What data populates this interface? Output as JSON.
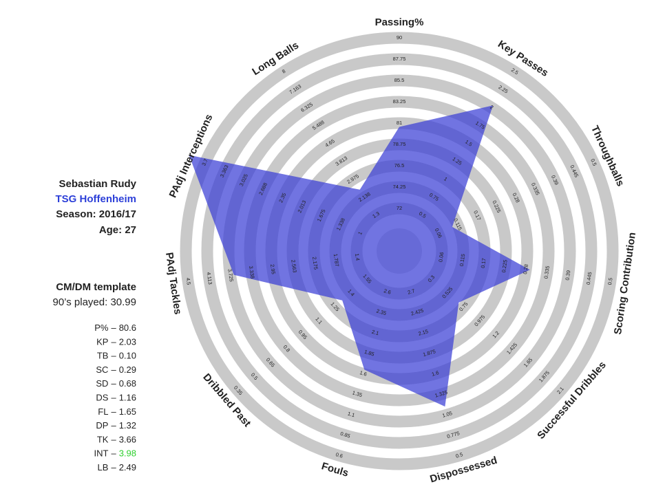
{
  "chart_data": {
    "type": "radar",
    "axes": [
      {
        "name": "Passing%",
        "lim": [
          67.5,
          90
        ],
        "ticks": [
          72,
          74.25,
          76.5,
          78.75,
          81,
          83.25,
          85.5,
          87.75,
          90
        ]
      },
      {
        "name": "Key Passes",
        "lim": [
          0,
          2.5
        ],
        "ticks": [
          0.5,
          0.75,
          1,
          1.25,
          1.5,
          1.75,
          2,
          2.25,
          2.5
        ]
      },
      {
        "name": "Throughballs",
        "lim": [
          -0.05,
          0.5
        ],
        "ticks": [
          0.06,
          0.115,
          0.17,
          0.225,
          0.28,
          0.335,
          0.39,
          0.445,
          0.5
        ]
      },
      {
        "name": "Scoring Contribution",
        "lim": [
          -0.05,
          0.5
        ],
        "ticks": [
          0.06,
          0.115,
          0.17,
          0.225,
          0.28,
          0.335,
          0.39,
          0.445,
          0.5
        ]
      },
      {
        "name": "Successful Dribbles",
        "lim": [
          -0.15,
          2.1
        ],
        "ticks": [
          0.3,
          0.525,
          0.75,
          0.975,
          1.2,
          1.425,
          1.65,
          1.875,
          2.1
        ]
      },
      {
        "name": "Dispossessed",
        "lim": [
          3.25,
          0.5
        ],
        "ticks": [
          2.7,
          2.425,
          2.15,
          1.875,
          1.6,
          1.325,
          1.05,
          0.775,
          0.5
        ]
      },
      {
        "name": "Fouls",
        "lim": [
          3.1,
          0.6
        ],
        "ticks": [
          2.6,
          2.35,
          2.1,
          1.85,
          1.6,
          1.35,
          1.1,
          0.85,
          0.6
        ]
      },
      {
        "name": "Dribbled Past",
        "lim": [
          1.85,
          0.35
        ],
        "ticks": [
          1.55,
          1.4,
          1.25,
          1.1,
          0.95,
          0.8,
          0.65,
          0.5,
          0.35
        ]
      },
      {
        "name": "PAdj Tackles",
        "lim": [
          0.625,
          4.5
        ],
        "ticks": [
          1.4,
          1.787,
          2.175,
          2.563,
          2.95,
          3.338,
          3.725,
          4.113,
          4.5
        ]
      },
      {
        "name": "PAdj Interceptions",
        "lim": [
          0.325,
          3.7
        ],
        "ticks": [
          1,
          1.338,
          1.675,
          2.013,
          2.35,
          2.688,
          3.025,
          3.363,
          3.7
        ]
      },
      {
        "name": "Long Balls",
        "lim": [
          -0.375,
          8
        ],
        "ticks": [
          1.3,
          2.138,
          2.975,
          3.813,
          4.65,
          5.488,
          6.325,
          7.163,
          8
        ]
      }
    ],
    "series": [
      {
        "color": "#3a3fd6",
        "values": [
          80.6,
          2.03,
          0.1,
          0.29,
          0.68,
          1.16,
          1.65,
          1.32,
          3.66,
          3.98,
          2.49
        ]
      }
    ],
    "ring_color": "#c9c9c9",
    "center_color": "#dcdcdc"
  },
  "player": {
    "name": "Sebastian Rudy",
    "team": "TSG Hoffenheim",
    "season": "Season: 2016/17",
    "age": "Age: 27",
    "template": "CM/DM template",
    "played": "90’s played: 30.99",
    "separator": "–",
    "stats": [
      {
        "label": "P%",
        "value": "80.6",
        "color": "#222222"
      },
      {
        "label": "KP",
        "value": "2.03",
        "color": "#222222"
      },
      {
        "label": "TB",
        "value": "0.10",
        "color": "#222222"
      },
      {
        "label": "SC",
        "value": "0.29",
        "color": "#222222"
      },
      {
        "label": "SD",
        "value": "0.68",
        "color": "#222222"
      },
      {
        "label": "DS",
        "value": "1.16",
        "color": "#222222"
      },
      {
        "label": "FL",
        "value": "1.65",
        "color": "#222222"
      },
      {
        "label": "DP",
        "value": "1.32",
        "color": "#222222"
      },
      {
        "label": "TK",
        "value": "3.66",
        "color": "#222222"
      },
      {
        "label": "INT",
        "value": "3.98",
        "color": "#2fcf2f"
      },
      {
        "label": "LB",
        "value": "2.49",
        "color": "#222222"
      }
    ]
  }
}
